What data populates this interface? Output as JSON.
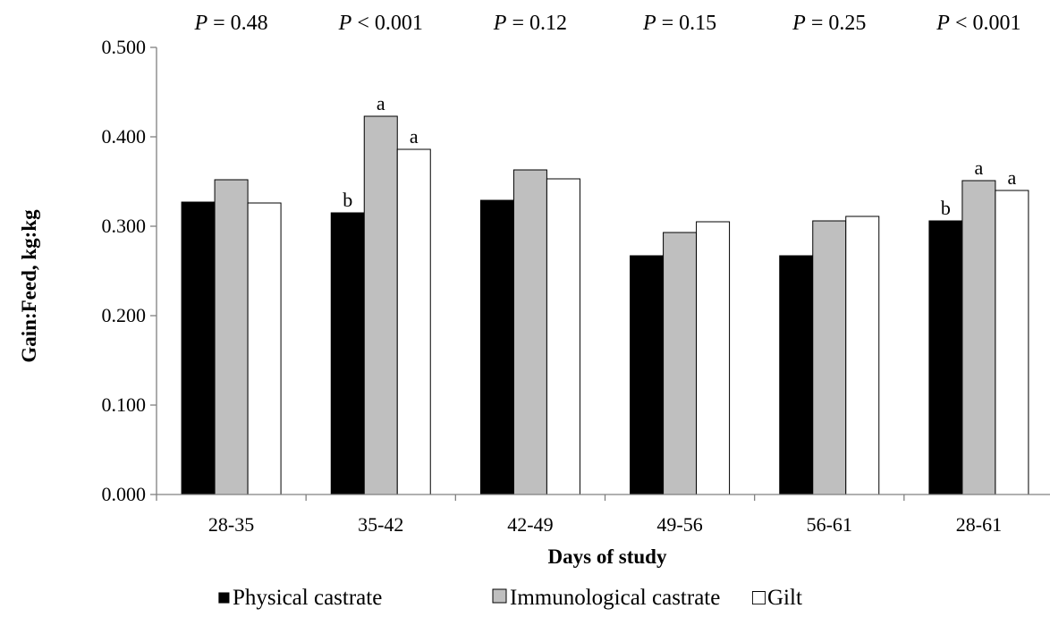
{
  "chart_data": {
    "type": "bar",
    "categories": [
      "28-35",
      "35-42",
      "42-49",
      "49-56",
      "56-61",
      "28-61"
    ],
    "series": [
      {
        "name": "Physical castrate",
        "color": "#000000",
        "values": [
          0.327,
          0.315,
          0.329,
          0.267,
          0.267,
          0.306
        ]
      },
      {
        "name": "Immunological castrate",
        "color": "#bfbfbf",
        "values": [
          0.352,
          0.423,
          0.363,
          0.293,
          0.306,
          0.351
        ]
      },
      {
        "name": "Gilt",
        "color": "#ffffff",
        "values": [
          0.326,
          0.386,
          0.353,
          0.305,
          0.311,
          0.34
        ]
      }
    ],
    "significance_letters": [
      [
        "",
        "",
        ""
      ],
      [
        "b",
        "a",
        "a"
      ],
      [
        "",
        "",
        ""
      ],
      [
        "",
        "",
        ""
      ],
      [
        "",
        "",
        ""
      ],
      [
        "b",
        "a",
        "a"
      ]
    ],
    "p_values": [
      {
        "label": "P",
        "rest": " = 0.48"
      },
      {
        "label": "P",
        "rest": " < 0.001"
      },
      {
        "label": "P",
        "rest": " = 0.12"
      },
      {
        "label": "P",
        "rest": " = 0.15"
      },
      {
        "label": "P",
        "rest": " = 0.25"
      },
      {
        "label": "P",
        "rest": " < 0.001"
      }
    ],
    "xlabel": "Days of study",
    "ylabel": "Gain:Feed, kg:kg",
    "ylim": [
      0,
      0.5
    ],
    "yticks": [
      "0.000",
      "0.100",
      "0.200",
      "0.300",
      "0.400",
      "0.500"
    ],
    "grid": false,
    "legend_position": "bottom",
    "legend_markers": [
      "■",
      "□"
    ]
  }
}
